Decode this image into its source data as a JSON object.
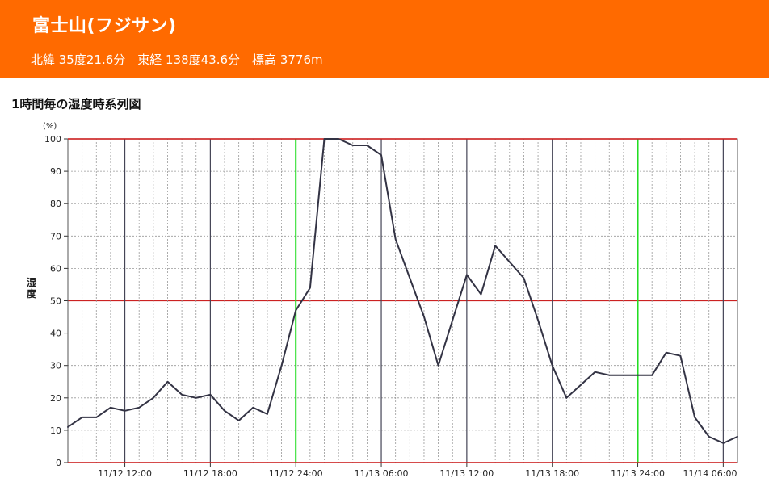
{
  "header": {
    "station_name": "富士山(フジサン)",
    "station_info": "北緯 35度21.6分　東経 138度43.6分　標高 3776m",
    "accent_color": "#ff6a00"
  },
  "chart_heading": "1時間毎の湿度時系列図",
  "chart_data": {
    "type": "line",
    "unit_label": "(%)",
    "ylabel": "湿度",
    "ylim": [
      0,
      100
    ],
    "y_ticks": [
      "0",
      "10",
      "20",
      "30",
      "40",
      "50",
      "60",
      "70",
      "80",
      "90",
      "100"
    ],
    "x_tick_labels": [
      "11/12 12:00",
      "11/12 18:00",
      "11/12 24:00",
      "11/13 06:00",
      "11/13 12:00",
      "11/13 18:00",
      "11/13 24:00",
      "11/14 06:00"
    ],
    "x_start": "11/12 08:00",
    "x_end": "11/14 06:00",
    "grid": true,
    "line_color": "#333344",
    "midnight_line_color": "#22dd22",
    "reference_line_color": "#cc2222",
    "series": [
      {
        "values": [
          11,
          14,
          14,
          17,
          16,
          17,
          20,
          25,
          21,
          20,
          21,
          16,
          13,
          17,
          15,
          30,
          47,
          54,
          100,
          100,
          98,
          98,
          95,
          69,
          57,
          45,
          30,
          44,
          58,
          52,
          67,
          62,
          57,
          44,
          30,
          20,
          24,
          28,
          27,
          27,
          27,
          27,
          34,
          33,
          14,
          8,
          6,
          8
        ]
      }
    ]
  }
}
